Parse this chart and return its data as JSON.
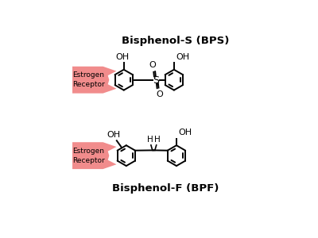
{
  "bg_color": "#ffffff",
  "title_bps": "Bisphenol-S (BPS)",
  "title_bpf": "Bisphenol-F (BPF)",
  "estrogen_color": "#f08080",
  "estrogen_label": "Estrogen\nReceptor",
  "bond_color": "#000000",
  "bond_lw": 1.4,
  "figsize": [
    4.0,
    3.0
  ],
  "dpi": 100,
  "xlim": [
    0,
    10
  ],
  "ylim": [
    0,
    7.5
  ]
}
